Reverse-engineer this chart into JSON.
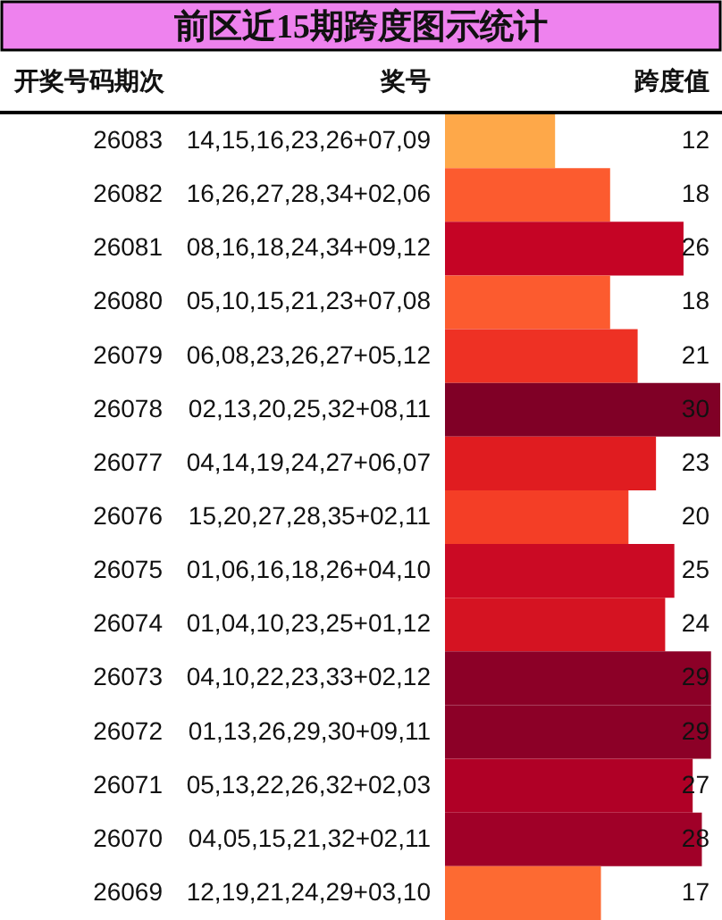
{
  "chart_data": {
    "type": "bar",
    "orientation": "horizontal",
    "title": "前区近15期跨度图示统计",
    "ylabel": "开奖号码期次",
    "xlabel": "跨度值",
    "categories": [
      "26083",
      "26082",
      "26081",
      "26080",
      "26079",
      "26078",
      "26077",
      "26076",
      "26075",
      "26074",
      "26073",
      "26072",
      "26071",
      "26070",
      "26069"
    ],
    "values": [
      12,
      18,
      26,
      18,
      21,
      30,
      23,
      20,
      25,
      24,
      29,
      29,
      27,
      28,
      17
    ],
    "colors": [
      "#fea849",
      "#fc5b2f",
      "#c50425",
      "#fc5b2f",
      "#ee3124",
      "#800026",
      "#e01c20",
      "#f43e26",
      "#cb0a24",
      "#d51322",
      "#8c0027",
      "#8c0027",
      "#b00026",
      "#a00028",
      "#fd6a32"
    ],
    "data_labels": true,
    "annotations": [
      "奖号",
      "14,15,16,23,26+07,09",
      "16,26,27,28,34+02,06",
      "08,16,18,24,34+09,12",
      "05,10,15,21,23+07,08",
      "06,08,23,26,27+05,12",
      "02,13,20,25,32+08,11",
      "04,14,19,24,27+06,07",
      "15,20,27,28,35+02,11",
      "01,06,16,18,26+04,10",
      "01,04,10,23,25+01,12",
      "04,10,22,23,33+02,12",
      "01,13,26,29,30+09,11",
      "05,13,22,26,32+02,03",
      "04,05,15,21,32+02,11",
      "12,19,21,24,29+03,10"
    ]
  }
}
